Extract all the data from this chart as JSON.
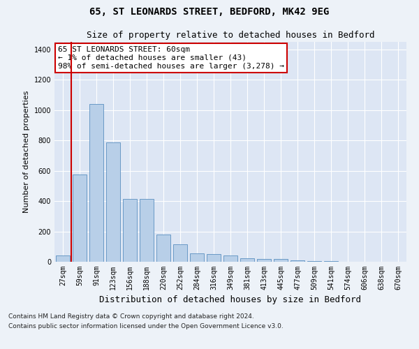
{
  "title1": "65, ST LEONARDS STREET, BEDFORD, MK42 9EG",
  "title2": "Size of property relative to detached houses in Bedford",
  "xlabel": "Distribution of detached houses by size in Bedford",
  "ylabel": "Number of detached properties",
  "categories": [
    "27sqm",
    "59sqm",
    "91sqm",
    "123sqm",
    "156sqm",
    "188sqm",
    "220sqm",
    "252sqm",
    "284sqm",
    "316sqm",
    "349sqm",
    "381sqm",
    "413sqm",
    "445sqm",
    "477sqm",
    "509sqm",
    "541sqm",
    "574sqm",
    "606sqm",
    "638sqm",
    "670sqm"
  ],
  "values": [
    43,
    575,
    1040,
    785,
    415,
    415,
    180,
    115,
    55,
    50,
    40,
    25,
    20,
    20,
    10,
    5,
    3,
    1,
    0,
    0,
    0
  ],
  "bar_color": "#b8cfe8",
  "bar_edge_color": "#5a8fc0",
  "annotation_text": "65 ST LEONARDS STREET: 60sqm\n← 1% of detached houses are smaller (43)\n98% of semi-detached houses are larger (3,278) →",
  "annotation_box_facecolor": "#ffffff",
  "annotation_box_edgecolor": "#cc0000",
  "vline_color": "#cc0000",
  "vline_x": 0.5,
  "ylim_max": 1450,
  "yticks": [
    0,
    200,
    400,
    600,
    800,
    1000,
    1200,
    1400
  ],
  "bg_color": "#edf2f8",
  "plot_bg_color": "#dde6f4",
  "grid_color": "#ffffff",
  "title1_fontsize": 10,
  "title2_fontsize": 9,
  "ylabel_fontsize": 8,
  "xlabel_fontsize": 9,
  "tick_fontsize": 7,
  "annot_fontsize": 8,
  "footer_fontsize": 6.5,
  "footer1": "Contains HM Land Registry data © Crown copyright and database right 2024.",
  "footer2": "Contains public sector information licensed under the Open Government Licence v3.0."
}
